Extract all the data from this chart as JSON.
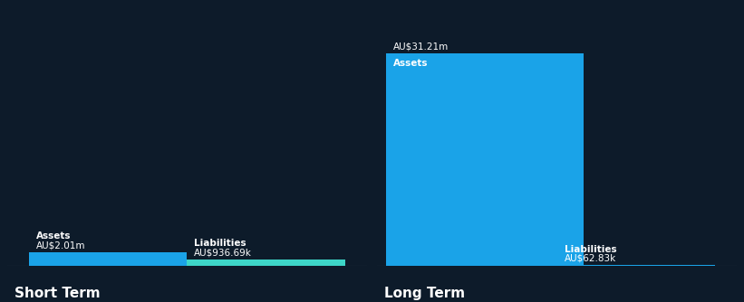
{
  "background_color": "#0d1b2a",
  "short_term": {
    "assets_value": 2010000,
    "assets_label": "AU$2.01m",
    "assets_color": "#1aa3e8",
    "liabilities_value": 936690,
    "liabilities_label": "AU$936.69k",
    "liabilities_color": "#3dd6c8",
    "x_label": "Short Term"
  },
  "long_term": {
    "assets_value": 31210000,
    "assets_label": "AU$31.21m",
    "assets_color": "#1aa3e8",
    "liabilities_value": 62830,
    "liabilities_label": "AU$62.83k",
    "liabilities_color": "#1aa3e8",
    "x_label": "Long Term"
  },
  "text_color": "#ffffff",
  "font_size_label": 7.5,
  "font_size_value": 7.5,
  "font_size_xaxis": 11
}
